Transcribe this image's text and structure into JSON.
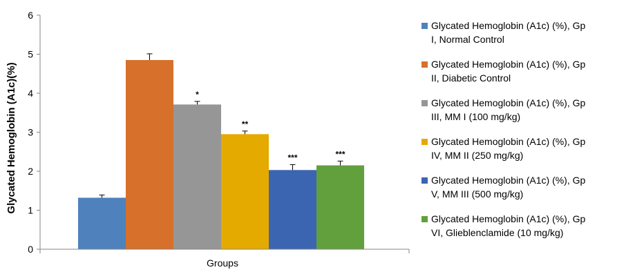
{
  "chart_data": {
    "type": "bar",
    "title": "",
    "xlabel": "Groups",
    "ylabel": "Glycated Hemoglobin (A1c)(%)",
    "ylim": [
      0,
      6
    ],
    "yticks": [
      0,
      1,
      2,
      3,
      4,
      5,
      6
    ],
    "grid": false,
    "legend_position": "right",
    "series": [
      {
        "name": "Glycated Hemoglobin (A1c) (%), Gp I, Normal Control",
        "legend_lines": [
          "Glycated Hemoglobin (A1c) (%), Gp",
          "I, Normal Control"
        ],
        "value": 1.32,
        "error": 0.07,
        "significance": "",
        "color": "#4F81BD"
      },
      {
        "name": "Glycated Hemoglobin (A1c) (%), Gp II, Diabetic Control",
        "legend_lines": [
          "Glycated Hemoglobin (A1c) (%), Gp",
          "II, Diabetic Control"
        ],
        "value": 4.85,
        "error": 0.16,
        "significance": "",
        "color": "#D6702B"
      },
      {
        "name": "Glycated Hemoglobin (A1c) (%), Gp III, MM I (100 mg/kg)",
        "legend_lines": [
          "Glycated Hemoglobin (A1c) (%), Gp",
          "III, MM I (100 mg/kg)"
        ],
        "value": 3.71,
        "error": 0.08,
        "significance": "*",
        "color": "#969696"
      },
      {
        "name": "Glycated Hemoglobin (A1c) (%), Gp IV, MM II (250 mg/kg)",
        "legend_lines": [
          "Glycated Hemoglobin (A1c) (%), Gp",
          "IV, MM II (250 mg/kg)"
        ],
        "value": 2.95,
        "error": 0.08,
        "significance": "**",
        "color": "#E5AA00"
      },
      {
        "name": "Glycated Hemoglobin (A1c) (%), Gp V, MM III (500 mg/kg)",
        "legend_lines": [
          "Glycated Hemoglobin (A1c) (%), Gp",
          "V, MM III (500 mg/kg)"
        ],
        "value": 2.03,
        "error": 0.14,
        "significance": "***",
        "color": "#3B65B0"
      },
      {
        "name": "Glycated Hemoglobin (A1c) (%), Gp VI, Glieblenclamide (10 mg/kg)",
        "legend_lines": [
          "Glycated Hemoglobin (A1c) (%), Gp",
          "VI, Glieblenclamide (10 mg/kg)"
        ],
        "value": 2.15,
        "error": 0.11,
        "significance": "***",
        "color": "#62A03E"
      }
    ]
  }
}
